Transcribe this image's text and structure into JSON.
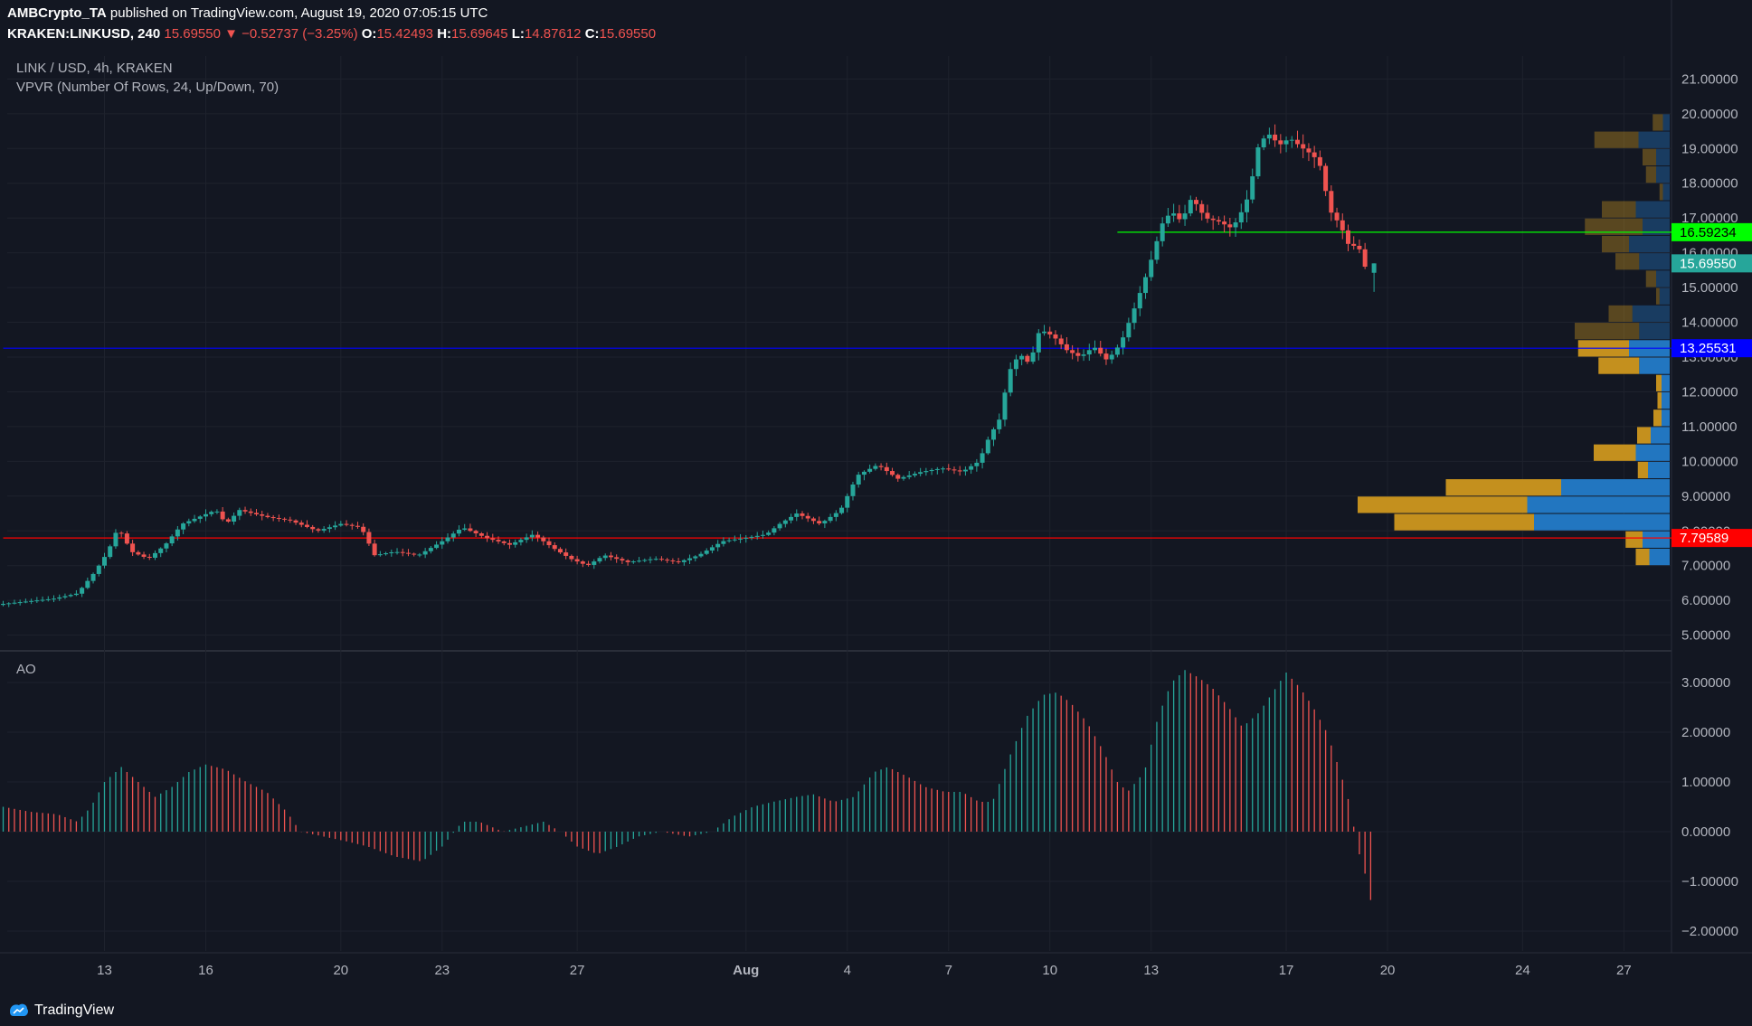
{
  "header": {
    "publisher": "AMBCrypto_TA",
    "published_text": "published on TradingView.com, August 19, 2020 07:05:15 UTC",
    "symbol": "KRAKEN:LINKUSD, 240",
    "last": "15.69550",
    "change": "−0.52737 (−3.25%)",
    "o_label": "O:",
    "o": "15.42493",
    "h_label": "H:",
    "h": "15.69645",
    "l_label": "L:",
    "l": "14.87612",
    "c_label": "C:",
    "c": "15.69550"
  },
  "main_pane": {
    "title": "LINK / USD, 4h, KRAKEN",
    "indicator": "VPVR (Number Of Rows, 24, Up/Down, 70)"
  },
  "ao_pane": {
    "title": "AO"
  },
  "brand": "TradingView",
  "colors": {
    "background": "#131722",
    "up": "#26a69a",
    "down": "#ef5350",
    "vp_up": "#2276c0",
    "vp_down": "#c4901e",
    "level_green": "#00ff00",
    "level_blue": "#0000ff",
    "level_red": "#ff0000"
  },
  "chart_data": [
    {
      "type": "candlestick",
      "price_axis": {
        "range": [
          4.6,
          21.4
        ],
        "ticks": [
          "21.00000",
          "20.00000",
          "19.00000",
          "18.00000",
          "17.00000",
          "16.00000",
          "15.00000",
          "14.00000",
          "13.00000",
          "12.00000",
          "11.00000",
          "10.00000",
          "9.00000",
          "8.00000",
          "7.00000",
          "6.00000",
          "5.00000"
        ]
      },
      "time_axis": {
        "labels": [
          {
            "label": "13",
            "day": 13
          },
          {
            "label": "16",
            "day": 16
          },
          {
            "label": "20",
            "day": 20
          },
          {
            "label": "23",
            "day": 23
          },
          {
            "label": "27",
            "day": 27
          },
          {
            "label": "Aug",
            "day": 32
          },
          {
            "label": "4",
            "day": 35
          },
          {
            "label": "7",
            "day": 38
          },
          {
            "label": "10",
            "day": 41
          },
          {
            "label": "13",
            "day": 44
          },
          {
            "label": "17",
            "day": 48
          },
          {
            "label": "20",
            "day": 51
          },
          {
            "label": "24",
            "day": 55
          },
          {
            "label": "27",
            "day": 58
          }
        ]
      },
      "close_path": [
        [
          10.0,
          5.9
        ],
        [
          11.5,
          6.05
        ],
        [
          12.2,
          6.2
        ],
        [
          12.7,
          6.8
        ],
        [
          13.1,
          7.4
        ],
        [
          13.4,
          8.1
        ],
        [
          13.8,
          7.4
        ],
        [
          14.3,
          7.2
        ],
        [
          14.8,
          7.6
        ],
        [
          15.3,
          8.2
        ],
        [
          15.8,
          8.4
        ],
        [
          16.3,
          8.6
        ],
        [
          16.6,
          8.2
        ],
        [
          17.0,
          8.6
        ],
        [
          17.8,
          8.4
        ],
        [
          18.5,
          8.3
        ],
        [
          19.3,
          8.0
        ],
        [
          20.0,
          8.2
        ],
        [
          20.6,
          8.1
        ],
        [
          21.0,
          7.3
        ],
        [
          21.6,
          7.4
        ],
        [
          22.3,
          7.3
        ],
        [
          23.0,
          7.7
        ],
        [
          23.6,
          8.1
        ],
        [
          24.3,
          7.8
        ],
        [
          25.0,
          7.6
        ],
        [
          25.7,
          7.9
        ],
        [
          26.3,
          7.5
        ],
        [
          26.8,
          7.2
        ],
        [
          27.3,
          7.0
        ],
        [
          27.8,
          7.3
        ],
        [
          28.5,
          7.1
        ],
        [
          29.3,
          7.2
        ],
        [
          30.0,
          7.1
        ],
        [
          30.6,
          7.3
        ],
        [
          31.3,
          7.7
        ],
        [
          32.0,
          7.8
        ],
        [
          32.6,
          7.9
        ],
        [
          33.0,
          8.2
        ],
        [
          33.5,
          8.5
        ],
        [
          34.2,
          8.2
        ],
        [
          34.8,
          8.6
        ],
        [
          35.3,
          9.6
        ],
        [
          35.9,
          9.9
        ],
        [
          36.5,
          9.5
        ],
        [
          37.2,
          9.7
        ],
        [
          37.8,
          9.8
        ],
        [
          38.4,
          9.7
        ],
        [
          38.9,
          10.0
        ],
        [
          39.2,
          10.7
        ],
        [
          39.5,
          11.2
        ],
        [
          39.8,
          12.6
        ],
        [
          40.1,
          13.1
        ],
        [
          40.4,
          12.8
        ],
        [
          40.7,
          13.8
        ],
        [
          41.1,
          13.6
        ],
        [
          41.5,
          13.2
        ],
        [
          41.9,
          13.0
        ],
        [
          42.3,
          13.3
        ],
        [
          42.7,
          12.9
        ],
        [
          43.1,
          13.4
        ],
        [
          43.5,
          14.4
        ],
        [
          43.8,
          15.2
        ],
        [
          44.1,
          16.1
        ],
        [
          44.3,
          16.8
        ],
        [
          44.6,
          17.2
        ],
        [
          44.9,
          16.9
        ],
        [
          45.2,
          17.6
        ],
        [
          45.6,
          17.0
        ],
        [
          46.0,
          16.9
        ],
        [
          46.4,
          16.7
        ],
        [
          46.8,
          17.4
        ],
        [
          47.0,
          18.2
        ],
        [
          47.2,
          19.2
        ],
        [
          47.5,
          19.4
        ],
        [
          47.8,
          19.1
        ],
        [
          48.1,
          19.3
        ],
        [
          48.5,
          19.0
        ],
        [
          48.8,
          18.8
        ],
        [
          49.0,
          18.5
        ],
        [
          49.3,
          17.2
        ],
        [
          49.6,
          16.8
        ],
        [
          49.9,
          16.1
        ],
        [
          50.1,
          16.3
        ],
        [
          50.4,
          15.4
        ],
        [
          50.6,
          15.7
        ]
      ],
      "last_candle": {
        "open": 15.42493,
        "high": 15.69645,
        "low": 14.87612,
        "close": 15.6955
      },
      "price_labels": [
        {
          "value": 16.59234,
          "text": "16.59234",
          "color": "#00ff00",
          "text_color": "#000000"
        },
        {
          "value": 15.6955,
          "text": "15.69550",
          "color": "#26a69a",
          "text_color": "#ffffff"
        },
        {
          "value": 13.25531,
          "text": "13.25531",
          "color": "#0000ff",
          "text_color": "#ffffff"
        },
        {
          "value": 7.79589,
          "text": "7.79589",
          "color": "#ff0000",
          "text_color": "#ffffff"
        }
      ],
      "horizontal_levels": [
        {
          "value": 16.59234,
          "color": "#00ff00",
          "from_day": 43.0
        },
        {
          "value": 13.25531,
          "color": "#0000ff",
          "from_day": 10.0
        },
        {
          "value": 7.79589,
          "color": "#ff0000",
          "from_day": 10.0
        }
      ],
      "volume_profile": {
        "row_height": 0.5,
        "rows": [
          {
            "price": 19.75,
            "up": 1.0,
            "down": 1.5
          },
          {
            "price": 19.25,
            "up": 4.6,
            "down": 6.5
          },
          {
            "price": 18.75,
            "up": 2.0,
            "down": 2.0
          },
          {
            "price": 18.25,
            "up": 2.0,
            "down": 1.5
          },
          {
            "price": 17.75,
            "up": 1.0,
            "down": 0.5
          },
          {
            "price": 17.25,
            "up": 5.0,
            "down": 5.0
          },
          {
            "price": 16.75,
            "up": 4.0,
            "down": 8.5
          },
          {
            "price": 16.25,
            "up": 6.0,
            "down": 4.0
          },
          {
            "price": 15.75,
            "up": 4.5,
            "down": 3.5
          },
          {
            "price": 15.25,
            "up": 2.0,
            "down": 1.5
          },
          {
            "price": 14.75,
            "up": 1.5,
            "down": 0.5
          },
          {
            "price": 14.25,
            "up": 5.5,
            "down": 3.5
          },
          {
            "price": 13.75,
            "up": 4.5,
            "down": 9.5
          },
          {
            "price": 13.25,
            "up": 6.0,
            "down": 7.5
          },
          {
            "price": 12.75,
            "up": 4.5,
            "down": 6.0
          },
          {
            "price": 12.25,
            "up": 1.2,
            "down": 0.8
          },
          {
            "price": 11.75,
            "up": 1.2,
            "down": 0.6
          },
          {
            "price": 11.25,
            "up": 1.2,
            "down": 1.2
          },
          {
            "price": 10.75,
            "up": 2.8,
            "down": 2.0
          },
          {
            "price": 10.25,
            "up": 5.0,
            "down": 6.2
          },
          {
            "price": 9.75,
            "up": 3.2,
            "down": 1.5
          },
          {
            "price": 9.25,
            "up": 16.0,
            "down": 17.0
          },
          {
            "price": 8.75,
            "up": 21.0,
            "down": 25.0
          },
          {
            "price": 8.25,
            "up": 20.0,
            "down": 20.6
          },
          {
            "price": 7.75,
            "up": 4.0,
            "down": 2.5
          },
          {
            "price": 7.25,
            "up": 3.0,
            "down": 2.0
          }
        ]
      }
    },
    {
      "type": "histogram",
      "title": "AO",
      "value_axis": {
        "range": [
          -2.4,
          3.6
        ],
        "ticks": [
          "3.00000",
          "2.00000",
          "1.00000",
          "0.00000",
          "−1.00000",
          "−2.00000"
        ]
      },
      "ao_path": [
        [
          10.0,
          0.5
        ],
        [
          10.8,
          0.4
        ],
        [
          11.6,
          0.35
        ],
        [
          12.2,
          0.2
        ],
        [
          12.6,
          0.5
        ],
        [
          13.0,
          1.0
        ],
        [
          13.5,
          1.3
        ],
        [
          14.0,
          1.0
        ],
        [
          14.5,
          0.7
        ],
        [
          15.0,
          0.9
        ],
        [
          15.5,
          1.2
        ],
        [
          16.0,
          1.35
        ],
        [
          16.6,
          1.25
        ],
        [
          17.2,
          1.0
        ],
        [
          17.8,
          0.8
        ],
        [
          18.4,
          0.4
        ],
        [
          18.8,
          0.0
        ],
        [
          19.5,
          -0.1
        ],
        [
          20.2,
          -0.2
        ],
        [
          20.8,
          -0.3
        ],
        [
          21.6,
          -0.5
        ],
        [
          22.4,
          -0.6
        ],
        [
          23.0,
          -0.3
        ],
        [
          23.6,
          0.2
        ],
        [
          24.1,
          0.2
        ],
        [
          24.8,
          0.0
        ],
        [
          25.4,
          0.1
        ],
        [
          26.0,
          0.2
        ],
        [
          26.5,
          0.0
        ],
        [
          27.0,
          -0.3
        ],
        [
          27.6,
          -0.45
        ],
        [
          28.2,
          -0.3
        ],
        [
          28.8,
          -0.1
        ],
        [
          29.5,
          0.0
        ],
        [
          30.3,
          -0.1
        ],
        [
          31.0,
          0.0
        ],
        [
          31.6,
          0.3
        ],
        [
          32.2,
          0.5
        ],
        [
          32.8,
          0.6
        ],
        [
          33.5,
          0.7
        ],
        [
          34.0,
          0.75
        ],
        [
          34.6,
          0.6
        ],
        [
          35.2,
          0.7
        ],
        [
          35.8,
          1.2
        ],
        [
          36.2,
          1.3
        ],
        [
          36.8,
          1.1
        ],
        [
          37.3,
          0.9
        ],
        [
          37.9,
          0.8
        ],
        [
          38.4,
          0.8
        ],
        [
          38.9,
          0.6
        ],
        [
          39.3,
          0.6
        ],
        [
          39.8,
          1.5
        ],
        [
          40.3,
          2.3
        ],
        [
          40.8,
          2.75
        ],
        [
          41.2,
          2.8
        ],
        [
          41.6,
          2.6
        ],
        [
          42.1,
          2.2
        ],
        [
          42.6,
          1.6
        ],
        [
          43.0,
          1.0
        ],
        [
          43.3,
          0.8
        ],
        [
          43.8,
          1.2
        ],
        [
          44.2,
          2.3
        ],
        [
          44.6,
          3.0
        ],
        [
          45.0,
          3.25
        ],
        [
          45.4,
          3.1
        ],
        [
          45.8,
          2.9
        ],
        [
          46.3,
          2.5
        ],
        [
          46.7,
          2.1
        ],
        [
          47.2,
          2.4
        ],
        [
          47.7,
          2.9
        ],
        [
          48.0,
          3.2
        ],
        [
          48.4,
          2.9
        ],
        [
          48.8,
          2.5
        ],
        [
          49.2,
          2.0
        ],
        [
          49.6,
          1.2
        ],
        [
          49.9,
          0.5
        ],
        [
          50.1,
          -0.3
        ],
        [
          50.4,
          -1.0
        ],
        [
          50.6,
          -1.75
        ]
      ]
    }
  ]
}
